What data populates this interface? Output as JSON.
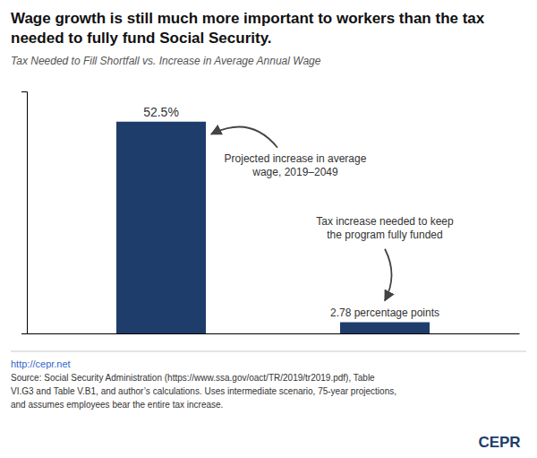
{
  "chart_data": {
    "type": "bar",
    "title": "Wage growth is still much more important to workers than the tax needed to fully fund Social Security.",
    "subtitle": "Tax Needed to Fill Shortfall vs. Increase in Average Annual Wage",
    "categories": [
      null,
      null
    ],
    "values": [
      52.5,
      2.78
    ],
    "value_labels": [
      "52.5%",
      "2.78 percentage points"
    ],
    "data_labels": true,
    "color": "#1e3d6b",
    "ylim": [
      0,
      60
    ],
    "tick_labels": false,
    "annotations": [
      "Projected increase in average\nwage, 2019–2049",
      "Tax increase needed to keep\nthe program fully funded"
    ],
    "notes": [
      "http://cepr.net",
      "Source: Social Security Administration (https://www.ssa.gov/oact/TR/2019/tr2019.pdf), Table",
      "VI.G3 and Table V.B1, and author’s calculations. Uses intermediate scenario, 75-year projections,",
      "and assumes employees bear the entire tax increase."
    ],
    "logo": "CEPR"
  }
}
